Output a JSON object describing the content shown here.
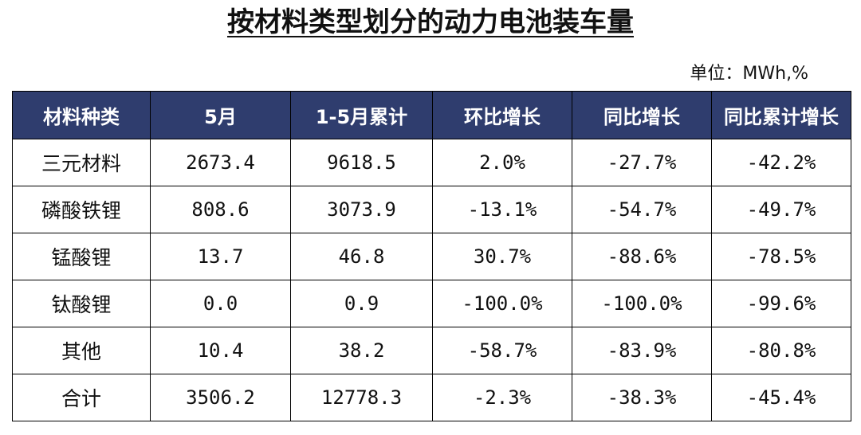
{
  "title": "按材料类型划分的动力电池装车量",
  "unit_label": "单位：MWh,%",
  "table": {
    "headers": [
      "材料种类",
      "5月",
      "1-5月累计",
      "环比增长",
      "同比增长",
      "同比累计增长"
    ],
    "rows": [
      [
        "三元材料",
        "2673.4",
        "9618.5",
        "2.0%",
        "-27.7%",
        "-42.2%"
      ],
      [
        "磷酸铁锂",
        "808.6",
        "3073.9",
        "-13.1%",
        "-54.7%",
        "-49.7%"
      ],
      [
        "锰酸锂",
        "13.7",
        "46.8",
        "30.7%",
        "-88.6%",
        "-78.5%"
      ],
      [
        "钛酸锂",
        "0.0",
        "0.9",
        "-100.0%",
        "-100.0%",
        "-99.6%"
      ],
      [
        "其他",
        "10.4",
        "38.2",
        "-58.7%",
        "-83.9%",
        "-80.8%"
      ],
      [
        "合计",
        "3506.2",
        "12778.3",
        "-2.3%",
        "-38.3%",
        "-45.4%"
      ]
    ]
  },
  "colors": {
    "header_bg": "#2f3d6e",
    "header_text": "#ffffff",
    "border": "#000000"
  }
}
